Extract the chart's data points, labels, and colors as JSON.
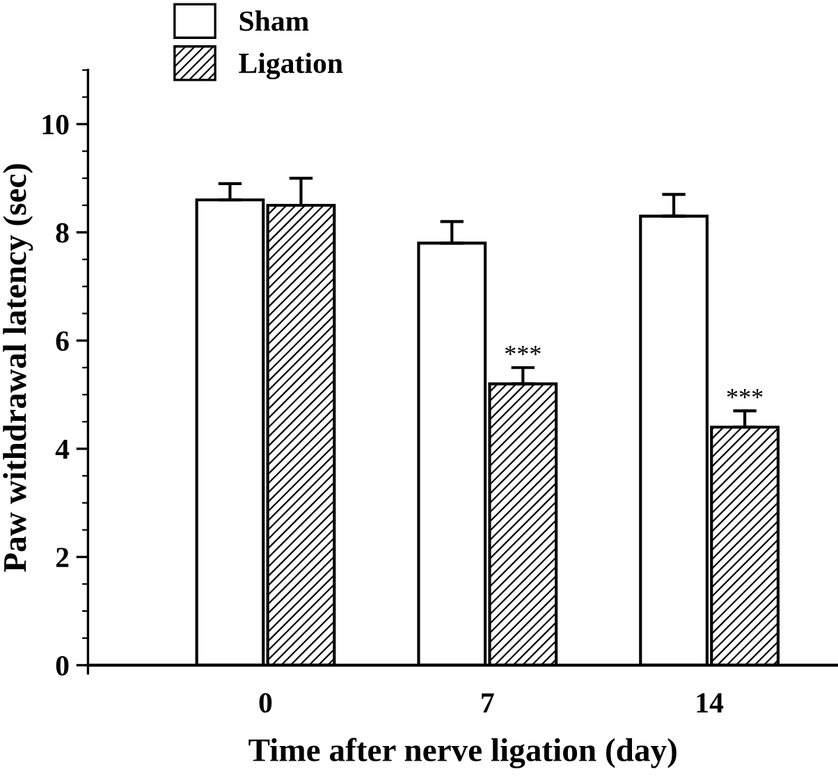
{
  "chart_data": {
    "type": "bar",
    "xlabel": "Time after nerve ligation (day)",
    "ylabel": "Paw withdrawal latency (sec)",
    "categories": [
      "0",
      "7",
      "14"
    ],
    "series": [
      {
        "name": "Sham",
        "color": "#ffffff",
        "values": [
          8.6,
          7.8,
          8.3
        ],
        "errors": [
          0.3,
          0.4,
          0.4
        ]
      },
      {
        "name": "Ligation",
        "color": "#000000",
        "values": [
          8.5,
          5.2,
          4.4
        ],
        "errors": [
          0.5,
          0.3,
          0.3
        ]
      }
    ],
    "ylim": [
      0,
      11
    ],
    "yticks": [
      0,
      2,
      4,
      6,
      8,
      10
    ],
    "annotations": [
      {
        "text": "***",
        "x": "7",
        "y": 5.5
      },
      {
        "text": "***",
        "x": "14",
        "y": 4.7
      }
    ],
    "legend": "top left",
    "grid": false
  }
}
